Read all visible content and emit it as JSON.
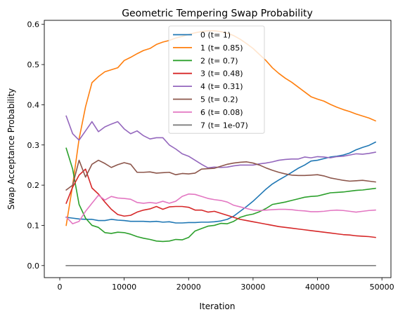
{
  "chart_data": {
    "type": "line",
    "title": "Geometric Tempering Swap Probability",
    "xlabel": "Iteration",
    "ylabel": "Swap Acceptance Probability",
    "xlim": [
      -2400,
      51400
    ],
    "ylim": [
      -0.03,
      0.61
    ],
    "xticks": [
      0,
      10000,
      20000,
      30000,
      40000,
      50000
    ],
    "xtick_labels": [
      "0",
      "10000",
      "20000",
      "30000",
      "40000",
      "50000"
    ],
    "yticks": [
      0.0,
      0.1,
      0.2,
      0.3,
      0.4,
      0.5,
      0.6
    ],
    "ytick_labels": [
      "0.0",
      "0.1",
      "0.2",
      "0.3",
      "0.4",
      "0.5",
      "0.6"
    ],
    "grid": false,
    "legend_position": "top-center",
    "x": [
      1000,
      2000,
      3000,
      4000,
      5000,
      6000,
      7000,
      8000,
      9000,
      10000,
      11000,
      12000,
      13000,
      14000,
      15000,
      16000,
      17000,
      18000,
      19000,
      20000,
      21000,
      22000,
      23000,
      24000,
      25000,
      26000,
      27000,
      28000,
      29000,
      30000,
      31000,
      32000,
      33000,
      34000,
      35000,
      36000,
      37000,
      38000,
      39000,
      40000,
      41000,
      42000,
      43000,
      44000,
      45000,
      46000,
      47000,
      48000,
      49000
    ],
    "series": [
      {
        "name": "0 (t= 1)",
        "color": "#1f77b4",
        "values": [
          0.12,
          0.118,
          0.116,
          0.115,
          0.115,
          0.112,
          0.112,
          0.115,
          0.113,
          0.112,
          0.11,
          0.11,
          0.11,
          0.109,
          0.11,
          0.108,
          0.109,
          0.106,
          0.106,
          0.107,
          0.107,
          0.108,
          0.108,
          0.109,
          0.111,
          0.115,
          0.123,
          0.135,
          0.147,
          0.16,
          0.175,
          0.19,
          0.203,
          0.213,
          0.222,
          0.232,
          0.242,
          0.25,
          0.26,
          0.262,
          0.266,
          0.27,
          0.272,
          0.275,
          0.28,
          0.288,
          0.294,
          0.299,
          0.307
        ]
      },
      {
        "name": "1 (t= 0.85)",
        "color": "#ff7f0e",
        "values": [
          0.1,
          0.2,
          0.315,
          0.395,
          0.455,
          0.47,
          0.482,
          0.487,
          0.492,
          0.51,
          0.518,
          0.527,
          0.535,
          0.54,
          0.55,
          0.556,
          0.56,
          0.566,
          0.57,
          0.575,
          0.579,
          0.582,
          0.584,
          0.584,
          0.582,
          0.578,
          0.572,
          0.563,
          0.552,
          0.54,
          0.525,
          0.51,
          0.492,
          0.478,
          0.466,
          0.456,
          0.444,
          0.432,
          0.42,
          0.414,
          0.409,
          0.401,
          0.394,
          0.388,
          0.383,
          0.377,
          0.372,
          0.367,
          0.36
        ]
      },
      {
        "name": "2 (t= 0.7)",
        "color": "#2ca02c",
        "values": [
          0.292,
          0.24,
          0.152,
          0.118,
          0.1,
          0.095,
          0.082,
          0.08,
          0.083,
          0.082,
          0.078,
          0.072,
          0.068,
          0.065,
          0.061,
          0.06,
          0.061,
          0.065,
          0.064,
          0.07,
          0.086,
          0.092,
          0.098,
          0.1,
          0.105,
          0.104,
          0.11,
          0.12,
          0.125,
          0.128,
          0.134,
          0.142,
          0.152,
          0.155,
          0.158,
          0.162,
          0.166,
          0.17,
          0.172,
          0.173,
          0.177,
          0.181,
          0.182,
          0.183,
          0.185,
          0.187,
          0.188,
          0.19,
          0.192
        ]
      },
      {
        "name": "3 (t= 0.48)",
        "color": "#d62728",
        "values": [
          0.155,
          0.195,
          0.225,
          0.24,
          0.193,
          0.178,
          0.158,
          0.14,
          0.127,
          0.123,
          0.125,
          0.133,
          0.138,
          0.141,
          0.147,
          0.14,
          0.146,
          0.147,
          0.147,
          0.145,
          0.138,
          0.138,
          0.133,
          0.135,
          0.13,
          0.125,
          0.12,
          0.115,
          0.112,
          0.109,
          0.106,
          0.103,
          0.1,
          0.097,
          0.095,
          0.093,
          0.091,
          0.089,
          0.087,
          0.085,
          0.083,
          0.081,
          0.079,
          0.077,
          0.076,
          0.074,
          0.073,
          0.072,
          0.07
        ]
      },
      {
        "name": "4 (t= 0.31)",
        "color": "#9467bd",
        "values": [
          0.372,
          0.328,
          0.312,
          0.335,
          0.358,
          0.333,
          0.345,
          0.352,
          0.358,
          0.34,
          0.328,
          0.335,
          0.323,
          0.315,
          0.318,
          0.318,
          0.3,
          0.29,
          0.278,
          0.272,
          0.262,
          0.252,
          0.243,
          0.245,
          0.244,
          0.245,
          0.248,
          0.25,
          0.25,
          0.25,
          0.253,
          0.255,
          0.258,
          0.262,
          0.264,
          0.265,
          0.265,
          0.27,
          0.268,
          0.271,
          0.27,
          0.268,
          0.271,
          0.272,
          0.275,
          0.278,
          0.277,
          0.279,
          0.282
        ]
      },
      {
        "name": "5 (t= 0.2)",
        "color": "#8c564b",
        "values": [
          0.188,
          0.2,
          0.262,
          0.22,
          0.252,
          0.262,
          0.254,
          0.244,
          0.251,
          0.256,
          0.252,
          0.232,
          0.232,
          0.233,
          0.23,
          0.231,
          0.232,
          0.226,
          0.229,
          0.228,
          0.23,
          0.24,
          0.241,
          0.242,
          0.247,
          0.252,
          0.255,
          0.257,
          0.258,
          0.255,
          0.25,
          0.243,
          0.237,
          0.232,
          0.228,
          0.225,
          0.224,
          0.224,
          0.225,
          0.226,
          0.223,
          0.218,
          0.215,
          0.212,
          0.21,
          0.211,
          0.212,
          0.21,
          0.208
        ]
      },
      {
        "name": "6 (t= 0.08)",
        "color": "#e377c2",
        "values": [
          0.121,
          0.104,
          0.11,
          0.135,
          0.155,
          0.175,
          0.163,
          0.172,
          0.168,
          0.167,
          0.165,
          0.157,
          0.155,
          0.157,
          0.155,
          0.16,
          0.155,
          0.16,
          0.172,
          0.178,
          0.177,
          0.172,
          0.167,
          0.164,
          0.162,
          0.158,
          0.15,
          0.146,
          0.142,
          0.138,
          0.137,
          0.138,
          0.139,
          0.14,
          0.14,
          0.139,
          0.137,
          0.136,
          0.134,
          0.134,
          0.135,
          0.137,
          0.138,
          0.137,
          0.135,
          0.133,
          0.135,
          0.137,
          0.138
        ]
      },
      {
        "name": "7 (t= 1e-07)",
        "color": "#7f7f7f",
        "values": [
          0.0,
          0.0,
          0.0,
          0.0,
          0.0,
          0.0,
          0.0,
          0.0,
          0.0,
          0.0,
          0.0,
          0.0,
          0.0,
          0.0,
          0.0,
          0.0,
          0.0,
          0.0,
          0.0,
          0.0,
          0.0,
          0.0,
          0.0,
          0.0,
          0.0,
          0.0,
          0.0,
          0.0,
          0.0,
          0.0,
          0.0,
          0.0,
          0.0,
          0.0,
          0.0,
          0.0,
          0.0,
          0.0,
          0.0,
          0.0,
          0.0,
          0.0,
          0.0,
          0.0,
          0.0,
          0.0,
          0.0,
          0.0,
          0.0
        ]
      }
    ]
  }
}
